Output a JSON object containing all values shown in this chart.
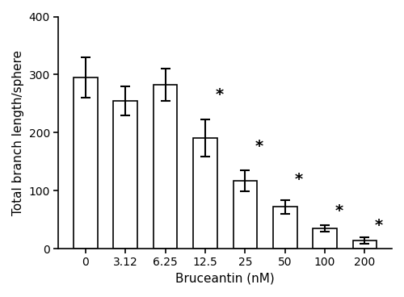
{
  "categories": [
    "0",
    "3.12",
    "6.25",
    "12.5",
    "25",
    "50",
    "100",
    "200"
  ],
  "values": [
    295,
    255,
    282,
    190,
    117,
    72,
    35,
    14
  ],
  "errors": [
    35,
    25,
    28,
    32,
    18,
    12,
    6,
    5
  ],
  "significant": [
    false,
    false,
    false,
    true,
    true,
    true,
    true,
    true
  ],
  "bar_color": "#ffffff",
  "bar_edge_color": "#000000",
  "error_color": "#000000",
  "title": "",
  "xlabel": "Bruceantin (nM)",
  "ylabel": "Total branch length/sphere",
  "ylim": [
    0,
    400
  ],
  "yticks": [
    0,
    100,
    200,
    300,
    400
  ],
  "bar_width": 0.6,
  "figure_bg": "#ffffff",
  "axes_bg": "#ffffff",
  "star_fontsize": 14,
  "axis_fontsize": 11,
  "tick_fontsize": 10
}
